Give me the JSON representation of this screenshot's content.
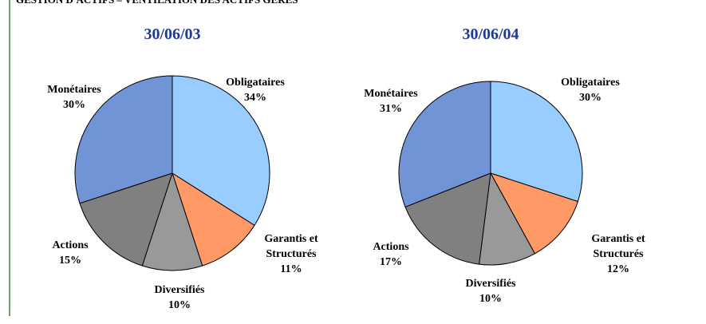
{
  "header": {
    "title": "GESTION D'ACTIFS – VENTILATION DES ACTIFS GÉRÉS"
  },
  "chart_data": [
    {
      "type": "pie",
      "title": "30/06/03",
      "categories": [
        "Obligataires",
        "Garantis et Structurés",
        "Diversifiés",
        "Actions",
        "Monétaires"
      ],
      "values": [
        34,
        11,
        10,
        15,
        30
      ],
      "value_labels": [
        "34%",
        "11%",
        "10%",
        "15%",
        "30%"
      ],
      "colors": [
        "#99ccff",
        "#ff9966",
        "#999999",
        "#808080",
        "#7094d6"
      ]
    },
    {
      "type": "pie",
      "title": "30/06/04",
      "categories": [
        "Obligataires",
        "Garantis et Structurés",
        "Diversifiés",
        "Actions",
        "Monétaires"
      ],
      "values": [
        30,
        12,
        10,
        17,
        31
      ],
      "value_labels": [
        "30%",
        "12%",
        "10%",
        "17%",
        "31%"
      ],
      "colors": [
        "#99ccff",
        "#ff9966",
        "#999999",
        "#808080",
        "#7094d6"
      ]
    }
  ]
}
